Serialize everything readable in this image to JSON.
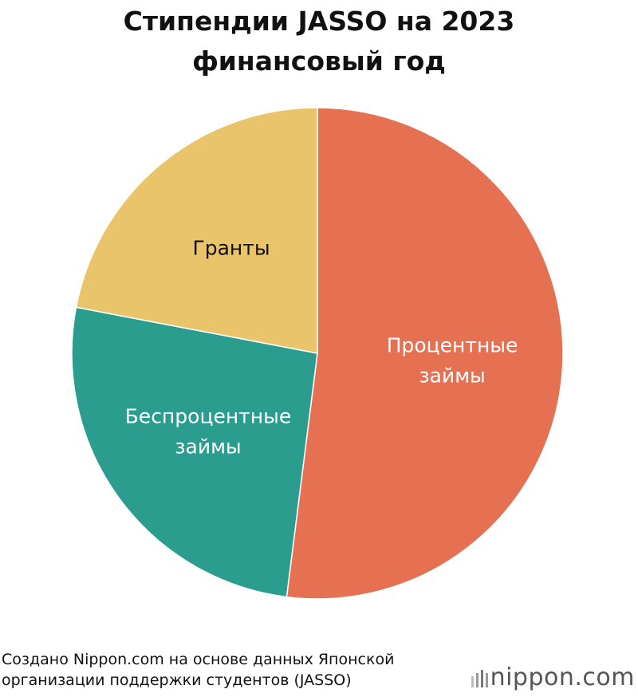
{
  "chart_data": {
    "type": "pie",
    "title": "Стипендии JASSO на 2023 финансовый год",
    "categories": [
      "Процентные займы",
      "Беспроцентные займы",
      "Гранты"
    ],
    "values": [
      52,
      26,
      22
    ],
    "colors": [
      "#e57052",
      "#2a9d8f",
      "#e9c46a"
    ],
    "source": "Создано Nippon.com на основе данных Японской организации поддержки студентов (JASSO)",
    "logo": "nippon.com"
  }
}
